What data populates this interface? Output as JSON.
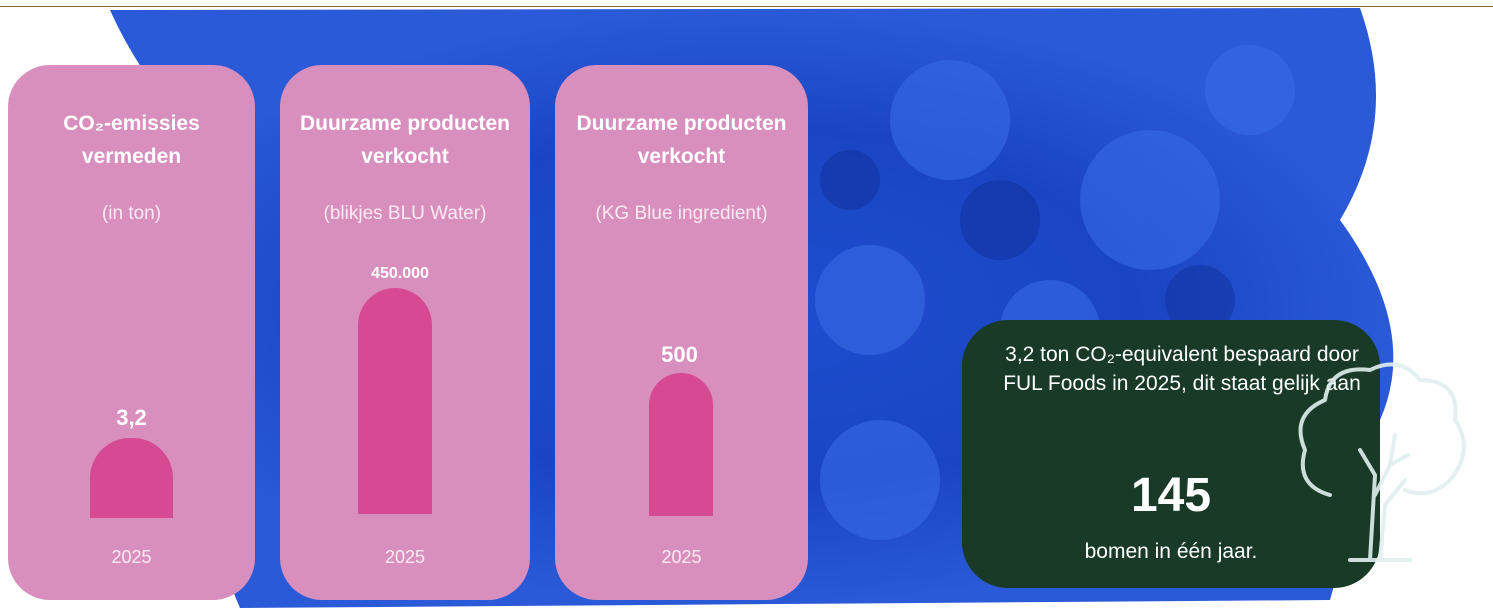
{
  "cards": [
    {
      "title": "CO₂-emissies vermeden",
      "subtitle": "(in ton)",
      "value": "3,2",
      "year": "2025"
    },
    {
      "title": "Duurzame producten verkocht",
      "subtitle": "(blikjes BLU Water)",
      "value": "450.000",
      "year": "2025"
    },
    {
      "title": "Duurzame producten verkocht",
      "subtitle": "(KG Blue ingredient)",
      "value": "500",
      "year": "2025"
    }
  ],
  "note": {
    "text": "3,2 ton CO₂-equivalent bespaard door FUL Foods in 2025, dit staat gelijk aan",
    "highlight": "145",
    "ending": "bomen in één jaar."
  }
}
